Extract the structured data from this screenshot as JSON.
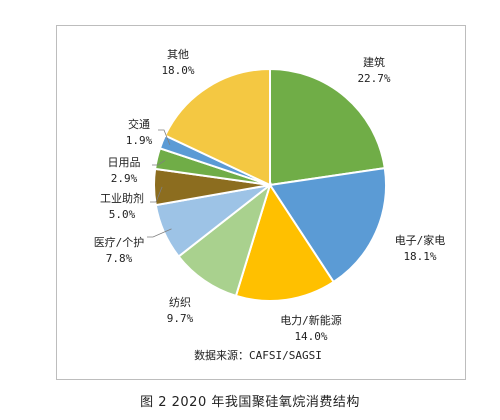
{
  "chart_data": {
    "type": "pie",
    "title": "",
    "source_note": "数据来源：CAFSI/SAGSI",
    "slices": [
      {
        "label": "建筑",
        "value": 22.7,
        "value_label": "22.7%",
        "color": "#70ad47"
      },
      {
        "label": "电子/家电",
        "value": 18.1,
        "value_label": "18.1%",
        "color": "#5b9bd5"
      },
      {
        "label": "电力/新能源",
        "value": 14.0,
        "value_label": "14.0%",
        "color": "#ffc000"
      },
      {
        "label": "纺织",
        "value": 9.7,
        "value_label": "9.7%",
        "color": "#a9d18e"
      },
      {
        "label": "医疗/个护",
        "value": 7.8,
        "value_label": "7.8%",
        "color": "#9dc3e6"
      },
      {
        "label": "工业助剂",
        "value": 5.0,
        "value_label": "5.0%",
        "color": "#8c6d1f"
      },
      {
        "label": "日用品",
        "value": 2.9,
        "value_label": "2.9%",
        "color": "#70ad47"
      },
      {
        "label": "交通",
        "value": 1.9,
        "value_label": "1.9%",
        "color": "#5b9bd5"
      },
      {
        "label": "其他",
        "value": 18.0,
        "value_label": "18.0%",
        "color": "#f4c842"
      }
    ]
  },
  "caption": "图 2  2020 年我国聚硅氧烷消费结构"
}
